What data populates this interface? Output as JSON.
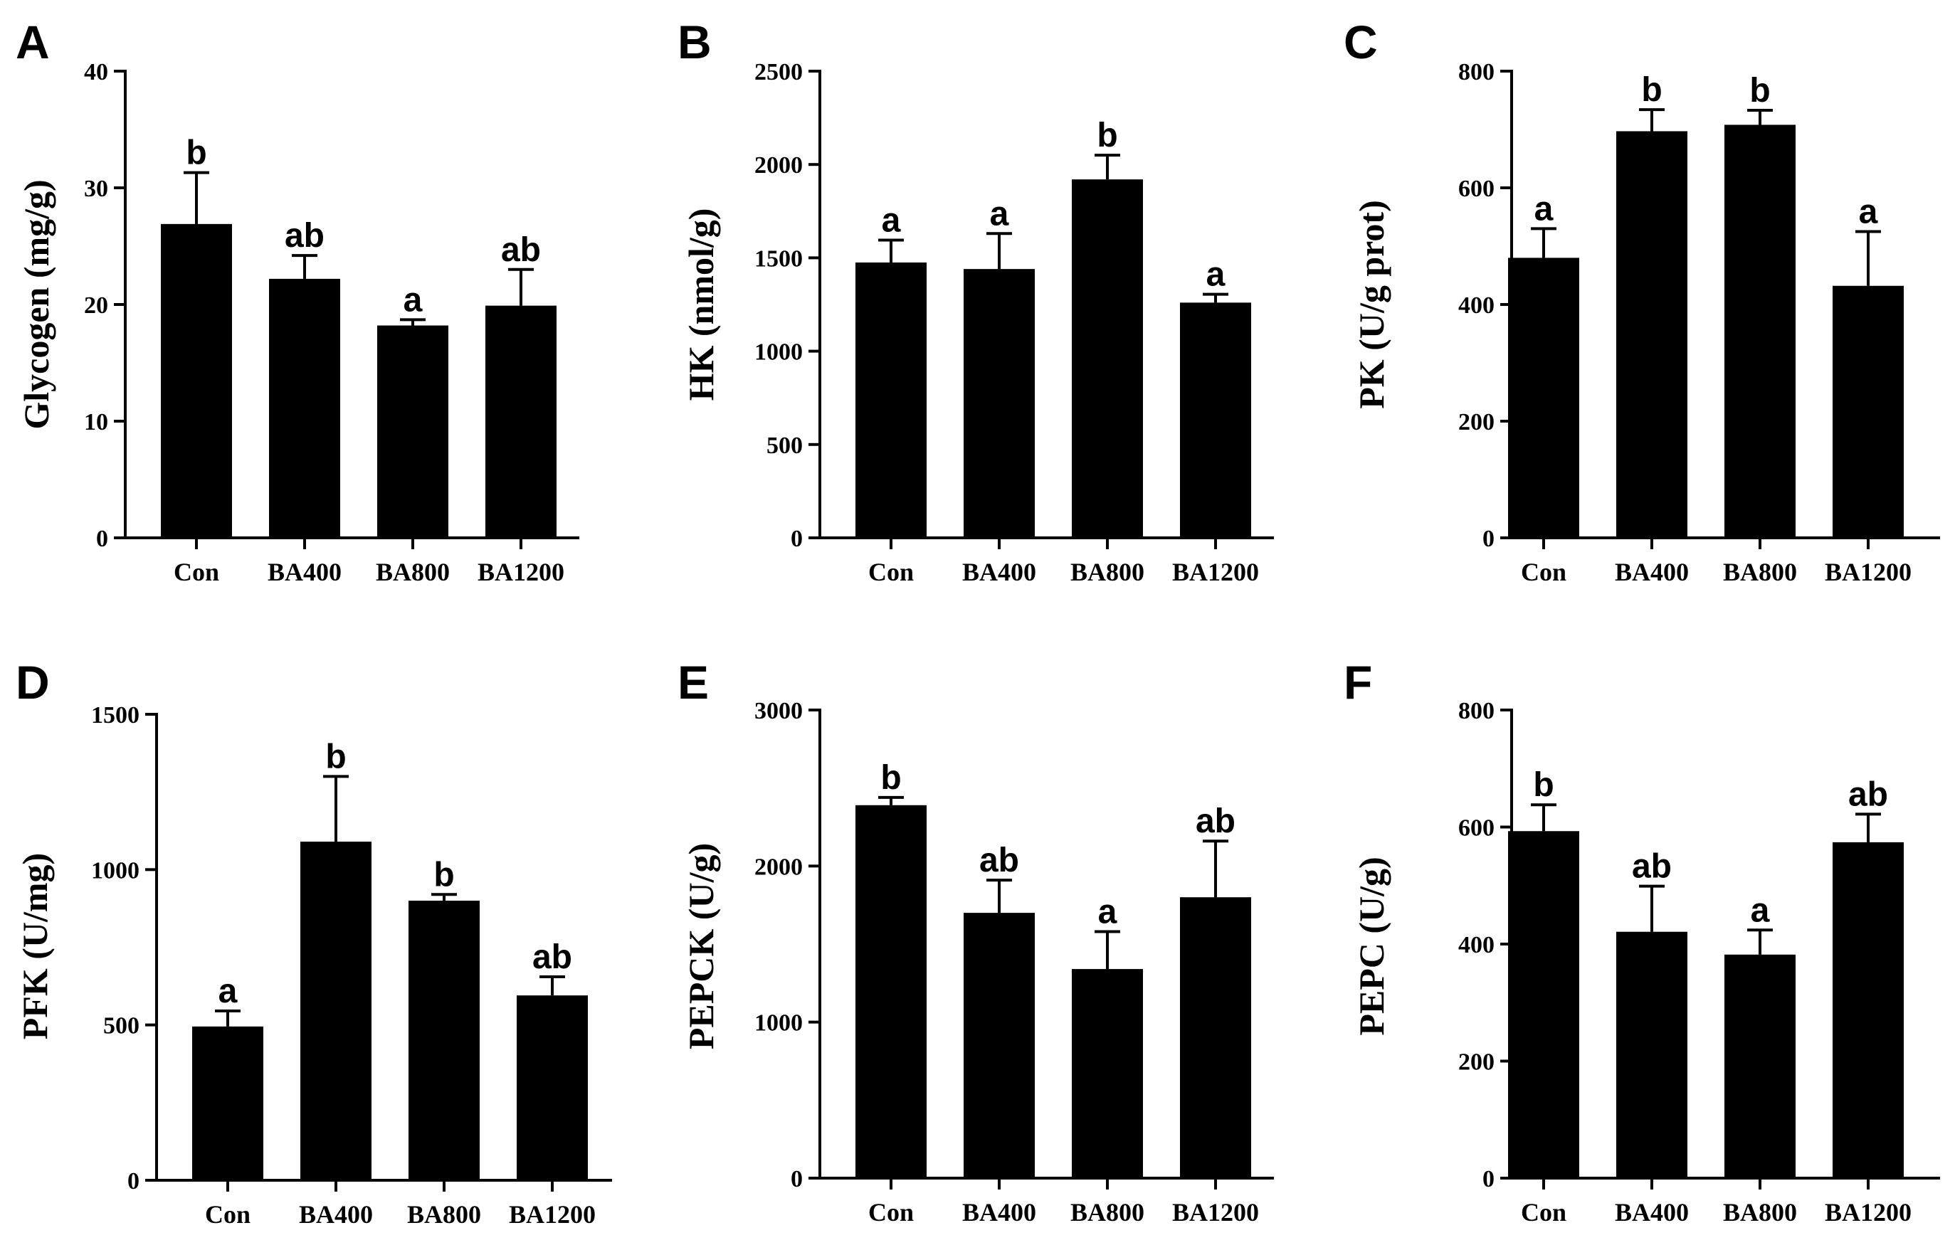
{
  "chart_data": [
    {
      "panel": "A",
      "type": "bar",
      "ylabel": "Glycogen (mg/g)",
      "categories": [
        "Con",
        "BA400",
        "BA800",
        "BA1200"
      ],
      "values": [
        26.9,
        22.2,
        18.2,
        19.9
      ],
      "errors": [
        4.4,
        2.0,
        0.5,
        3.1
      ],
      "labels": [
        "b",
        "ab",
        "a",
        "ab"
      ],
      "ylim": [
        0,
        40
      ],
      "yticks": [
        0,
        10,
        20,
        30,
        40
      ]
    },
    {
      "panel": "B",
      "type": "bar",
      "ylabel": "HK (nmol/g)",
      "categories": [
        "Con",
        "BA400",
        "BA800",
        "BA1200"
      ],
      "values": [
        1475,
        1440,
        1920,
        1260
      ],
      "errors": [
        120,
        190,
        130,
        45
      ],
      "labels": [
        "a",
        "a",
        "b",
        "a"
      ],
      "ylim": [
        0,
        2500
      ],
      "yticks": [
        0,
        500,
        1000,
        1500,
        2000,
        2500
      ]
    },
    {
      "panel": "C",
      "type": "bar",
      "ylabel": "PK (U/g prot)",
      "categories": [
        "Con",
        "BA400",
        "BA800",
        "BA1200"
      ],
      "values": [
        480,
        697,
        708,
        432
      ],
      "errors": [
        50,
        37,
        25,
        93
      ],
      "labels": [
        "a",
        "b",
        "b",
        "a"
      ],
      "ylim": [
        0,
        800
      ],
      "yticks": [
        0,
        200,
        400,
        600,
        800
      ]
    },
    {
      "panel": "D",
      "type": "bar",
      "ylabel": "PFK (U/mg)",
      "categories": [
        "Con",
        "BA400",
        "BA800",
        "BA1200"
      ],
      "values": [
        495,
        1090,
        900,
        595
      ],
      "errors": [
        50,
        210,
        20,
        60
      ],
      "labels": [
        "a",
        "b",
        "b",
        "ab"
      ],
      "ylim": [
        0,
        1500
      ],
      "yticks": [
        0,
        500,
        1000,
        1500
      ]
    },
    {
      "panel": "E",
      "type": "bar",
      "ylabel": "PEPCK (U/g)",
      "categories": [
        "Con",
        "BA400",
        "BA800",
        "BA1200"
      ],
      "values": [
        2390,
        1700,
        1340,
        1800
      ],
      "errors": [
        50,
        210,
        240,
        360
      ],
      "labels": [
        "b",
        "ab",
        "a",
        "ab"
      ],
      "ylim": [
        0,
        3000
      ],
      "yticks": [
        0,
        1000,
        2000,
        3000
      ]
    },
    {
      "panel": "F",
      "type": "bar",
      "ylabel": "PEPC (U/g)",
      "categories": [
        "Con",
        "BA400",
        "BA800",
        "BA1200"
      ],
      "values": [
        593,
        421,
        382,
        574
      ],
      "errors": [
        45,
        78,
        42,
        48
      ],
      "labels": [
        "b",
        "ab",
        "a",
        "ab"
      ],
      "ylim": [
        0,
        800
      ],
      "yticks": [
        0,
        200,
        400,
        600,
        800
      ]
    }
  ]
}
